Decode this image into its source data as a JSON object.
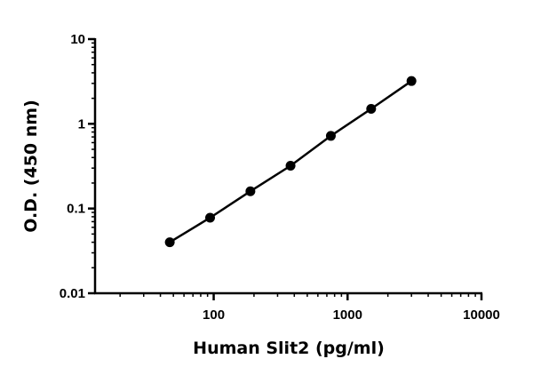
{
  "chart_data": {
    "type": "line",
    "title": "",
    "xlabel": "Human Slit2 (pg/ml)",
    "ylabel": "O.D. (450 nm)",
    "xscale": "log",
    "yscale": "log",
    "xlim": [
      13,
      10000
    ],
    "ylim": [
      0.01,
      10
    ],
    "xticks": [
      100,
      1000,
      10000
    ],
    "xtick_labels": [
      "100",
      "1000",
      "10000"
    ],
    "yticks": [
      0.01,
      0.1,
      1,
      10
    ],
    "ytick_labels": [
      "0.01",
      "0.1",
      "1",
      "10"
    ],
    "grid": false,
    "legend": null,
    "series": [
      {
        "name": "Human Slit2",
        "marker": "circle",
        "color": "#000000",
        "x": [
          47,
          94,
          188,
          375,
          750,
          1500,
          3000
        ],
        "y": [
          0.04,
          0.078,
          0.16,
          0.32,
          0.72,
          1.5,
          3.2
        ]
      }
    ]
  }
}
